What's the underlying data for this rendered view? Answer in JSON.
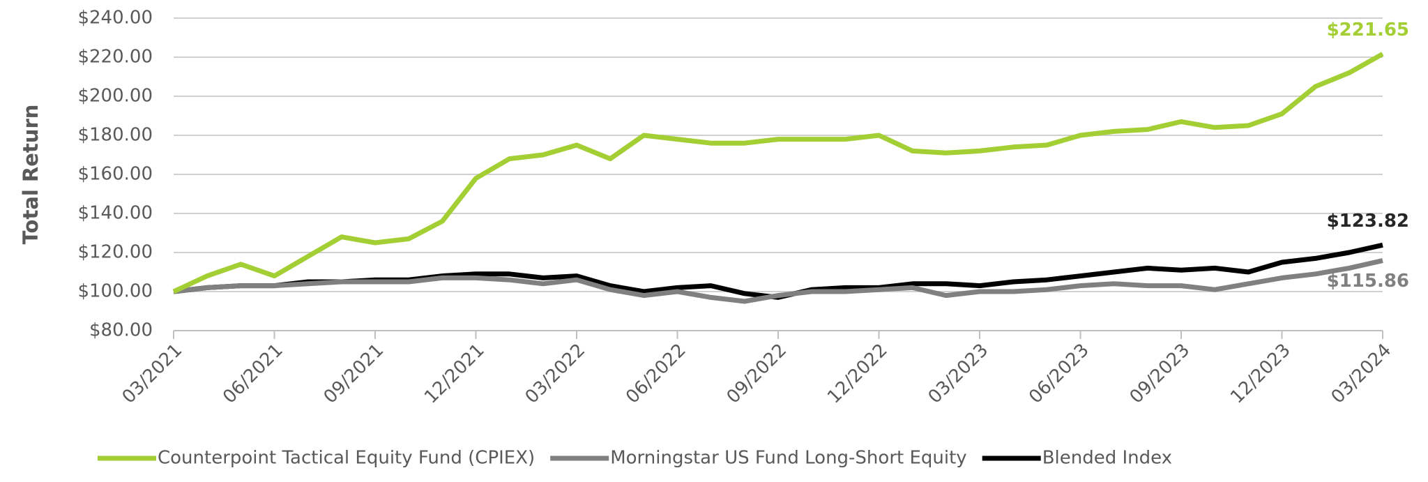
{
  "chart_data": {
    "type": "line",
    "y_label": "Total Return",
    "categories": [
      "03/2021",
      null,
      null,
      "06/2021",
      null,
      null,
      "09/2021",
      null,
      null,
      "12/2021",
      null,
      null,
      "03/2022",
      null,
      null,
      "06/2022",
      null,
      null,
      "09/2022",
      null,
      null,
      "12/2022",
      null,
      null,
      "03/2023",
      null,
      null,
      "06/2023",
      null,
      null,
      "09/2023",
      null,
      null,
      "12/2023",
      null,
      null,
      "03/2024"
    ],
    "series": [
      {
        "name": "Counterpoint Tactical Equity Fund (CPIEX)",
        "color": "#a3cf35",
        "values": [
          100,
          108,
          114,
          108,
          118,
          128,
          125,
          127,
          136,
          158,
          168,
          170,
          175,
          168,
          180,
          178,
          176,
          176,
          178,
          178,
          178,
          180,
          172,
          171,
          172,
          174,
          175,
          180,
          182,
          183,
          187,
          184,
          185,
          191,
          205,
          212,
          221.65
        ],
        "value_labels": [
          null,
          null,
          null,
          null,
          null,
          null,
          null,
          null,
          null,
          null,
          null,
          null,
          null,
          null,
          null,
          null,
          null,
          null,
          null,
          null,
          null,
          null,
          null,
          null,
          null,
          null,
          null,
          null,
          null,
          null,
          null,
          null,
          null,
          null,
          null,
          null,
          "$221.65"
        ]
      },
      {
        "name": "Morningstar US Fund Long-Short Equity",
        "color": "#808080",
        "values": [
          100,
          102,
          103,
          103,
          104,
          105,
          105,
          105,
          107,
          107,
          106,
          104,
          106,
          101,
          98,
          100,
          97,
          95,
          98,
          100,
          100,
          101,
          102,
          98,
          100,
          100,
          101,
          103,
          104,
          103,
          103,
          101,
          104,
          107,
          109,
          112,
          115.86
        ],
        "value_labels": [
          null,
          null,
          null,
          null,
          null,
          null,
          null,
          null,
          null,
          null,
          null,
          null,
          null,
          null,
          null,
          null,
          null,
          null,
          null,
          null,
          null,
          null,
          null,
          null,
          null,
          null,
          null,
          null,
          null,
          null,
          null,
          null,
          null,
          null,
          null,
          null,
          "$115.86"
        ]
      },
      {
        "name": "Blended Index",
        "color": "#000000",
        "values": [
          100,
          102,
          103,
          103,
          105,
          105,
          106,
          106,
          108,
          109,
          109,
          107,
          108,
          103,
          100,
          102,
          103,
          99,
          97,
          101,
          102,
          102,
          104,
          104,
          103,
          105,
          106,
          108,
          110,
          112,
          111,
          112,
          110,
          115,
          117,
          120,
          123.82
        ],
        "value_labels": [
          null,
          null,
          null,
          null,
          null,
          null,
          null,
          null,
          null,
          null,
          null,
          null,
          null,
          null,
          null,
          null,
          null,
          null,
          null,
          null,
          null,
          null,
          null,
          null,
          null,
          null,
          null,
          null,
          null,
          null,
          null,
          null,
          null,
          null,
          null,
          null,
          "$123.82"
        ]
      }
    ],
    "ylim": [
      80,
      240
    ],
    "yticks": [
      {
        "value": 80,
        "label": "$80.00"
      },
      {
        "value": 100,
        "label": "$100.00"
      },
      {
        "value": 120,
        "label": "$120.00"
      },
      {
        "value": 140,
        "label": "$140.00"
      },
      {
        "value": 160,
        "label": "$160.00"
      },
      {
        "value": 180,
        "label": "$180.00"
      },
      {
        "value": 200,
        "label": "$200.00"
      },
      {
        "value": 220,
        "label": "$220.00"
      },
      {
        "value": 240,
        "label": "$240.00"
      }
    ],
    "grid": true,
    "legend": "bottom"
  }
}
